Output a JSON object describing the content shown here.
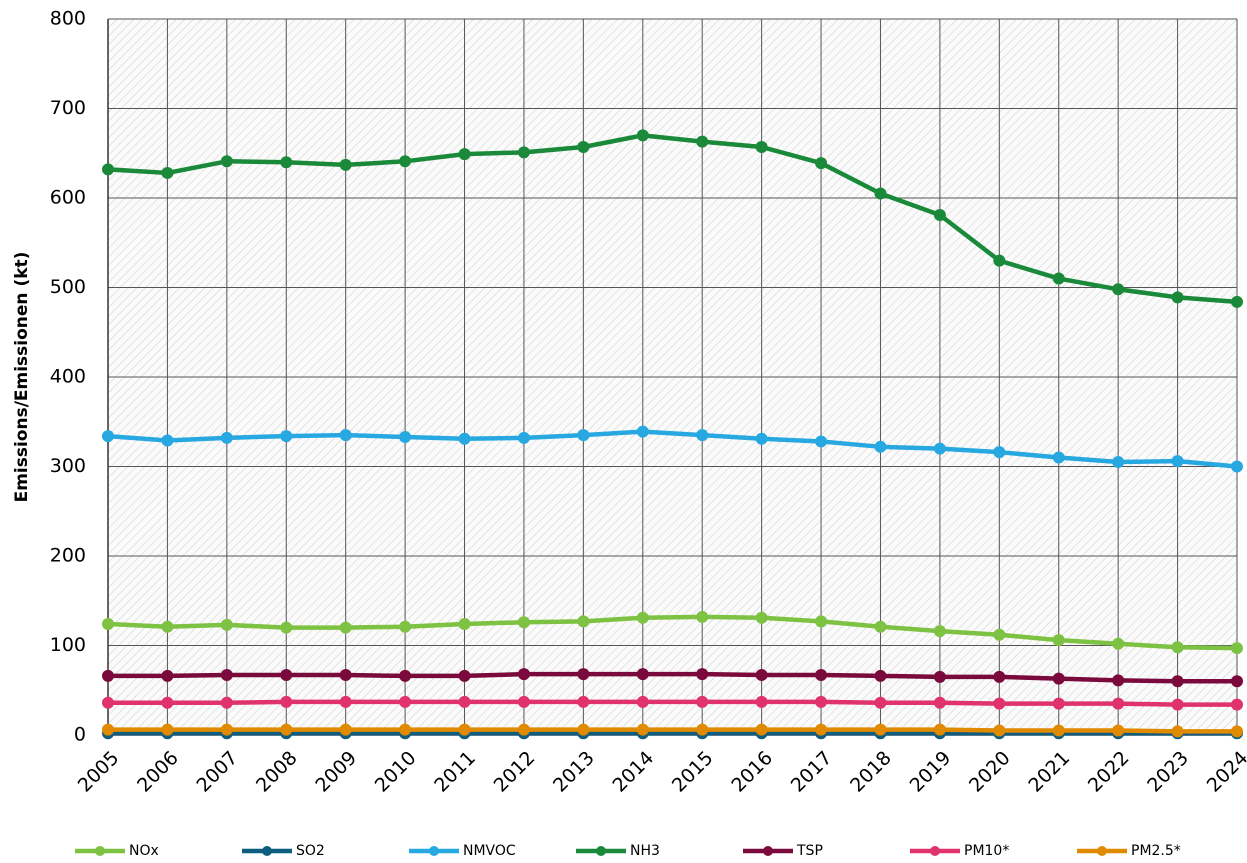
{
  "chart_data": {
    "type": "line",
    "ylabel": "Emissions/Emissionen (kt)",
    "categories": [
      "2005",
      "2006",
      "2007",
      "2008",
      "2009",
      "2010",
      "2011",
      "2012",
      "2013",
      "2014",
      "2015",
      "2016",
      "2017",
      "2018",
      "2019",
      "2020",
      "2021",
      "2022",
      "2023",
      "2024"
    ],
    "ylim": [
      0,
      800
    ],
    "yticks": [
      0,
      100,
      200,
      300,
      400,
      500,
      600,
      700,
      800
    ],
    "grid": true,
    "series": [
      {
        "name": "NOx",
        "color": "#7dc242",
        "values": [
          124,
          121,
          123,
          120,
          120,
          121,
          124,
          126,
          127,
          131,
          132,
          131,
          127,
          121,
          116,
          112,
          106,
          102,
          98,
          97
        ]
      },
      {
        "name": "SO2",
        "color": "#0e5d80",
        "values": [
          2,
          2,
          2,
          2,
          2,
          2,
          2,
          2,
          2,
          2,
          2,
          2,
          2,
          2,
          2,
          2,
          2,
          2,
          2,
          2
        ]
      },
      {
        "name": "NMVOC",
        "color": "#27a8e0",
        "values": [
          334,
          329,
          332,
          334,
          335,
          333,
          331,
          332,
          335,
          339,
          335,
          331,
          328,
          322,
          320,
          316,
          310,
          305,
          306,
          300
        ]
      },
      {
        "name": "NH3",
        "color": "#1a8a3a",
        "values": [
          632,
          628,
          641,
          640,
          637,
          641,
          649,
          651,
          657,
          670,
          663,
          657,
          639,
          605,
          581,
          530,
          510,
          498,
          489,
          484
        ]
      },
      {
        "name": "TSP",
        "color": "#7a0a3c",
        "values": [
          66,
          66,
          67,
          67,
          67,
          66,
          66,
          68,
          68,
          68,
          68,
          67,
          67,
          66,
          65,
          65,
          63,
          61,
          60,
          60
        ]
      },
      {
        "name": "PM10*",
        "color": "#e0336c",
        "values": [
          36,
          36,
          36,
          37,
          37,
          37,
          37,
          37,
          37,
          37,
          37,
          37,
          37,
          36,
          36,
          35,
          35,
          35,
          34,
          34
        ]
      },
      {
        "name": "PM2.5*",
        "color": "#e08a00",
        "values": [
          6,
          6,
          6,
          6,
          6,
          6,
          6,
          6,
          6,
          6,
          6,
          6,
          6,
          6,
          6,
          5,
          5,
          5,
          4,
          4
        ]
      }
    ]
  }
}
